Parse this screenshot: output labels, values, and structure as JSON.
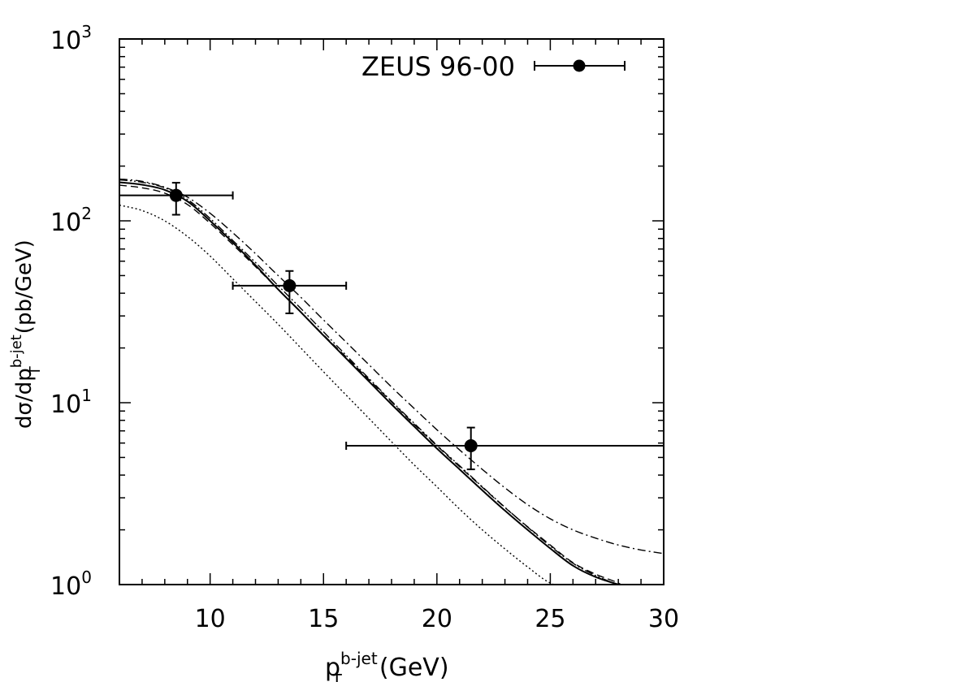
{
  "chart_data": {
    "type": "line",
    "title": "",
    "xlabel": {
      "base": "p",
      "sub": "T",
      "sup": "b-jet",
      "unit": "(GeV)"
    },
    "ylabel": {
      "prefix": "dσ/dp",
      "sub": "T",
      "sup": "b-jet",
      "unit": "(pb/GeV)"
    },
    "xlim": [
      6,
      30
    ],
    "ylim": [
      1,
      1000
    ],
    "yscale": "log",
    "grid": false,
    "legend_position": "top-right",
    "x_ticks": [
      {
        "value": 10,
        "label": "10"
      },
      {
        "value": 15,
        "label": "15"
      },
      {
        "value": 20,
        "label": "20"
      },
      {
        "value": 25,
        "label": "25"
      },
      {
        "value": 30,
        "label": "30"
      }
    ],
    "y_ticks": [
      {
        "value": 1,
        "base": "10",
        "exp": "0"
      },
      {
        "value": 10,
        "base": "10",
        "exp": "1"
      },
      {
        "value": 100,
        "base": "10",
        "exp": "2"
      },
      {
        "value": 1000,
        "base": "10",
        "exp": "3"
      }
    ],
    "data_series": {
      "name": "ZEUS 96-00",
      "points": [
        {
          "x": 8.5,
          "y": 138,
          "xerr": [
            6,
            11
          ],
          "yerr": [
            108,
            162
          ]
        },
        {
          "x": 13.5,
          "y": 44,
          "xerr": [
            11,
            16
          ],
          "yerr": [
            31,
            53
          ]
        },
        {
          "x": 21.5,
          "y": 5.8,
          "xerr": [
            16,
            30
          ],
          "yerr": [
            4.3,
            7.3
          ]
        }
      ]
    },
    "curves": [
      {
        "style": "solid",
        "x": [
          6,
          7,
          8,
          9,
          10,
          11,
          12,
          13,
          14,
          15,
          16,
          17,
          18,
          19,
          20,
          21,
          22,
          23,
          24,
          25,
          26,
          27,
          28,
          28.5
        ],
        "y": [
          163,
          158,
          148,
          128,
          100,
          76,
          57,
          42,
          31.5,
          23.4,
          17.5,
          13.1,
          9.8,
          7.4,
          5.6,
          4.3,
          3.3,
          2.55,
          2,
          1.58,
          1.27,
          1.1,
          1.0,
          0.95
        ]
      },
      {
        "style": "dashed",
        "x": [
          6,
          7,
          8,
          9,
          10,
          11,
          12,
          13,
          14,
          15,
          16,
          17,
          18,
          19,
          20,
          21,
          22,
          23,
          24,
          25,
          26,
          27,
          28,
          28.3
        ],
        "y": [
          157,
          152,
          142,
          123,
          97,
          74,
          56,
          42,
          31.5,
          23.6,
          17.8,
          13.4,
          10.1,
          7.6,
          5.8,
          4.45,
          3.43,
          2.65,
          2.08,
          1.65,
          1.32,
          1.14,
          1.02,
          0.95
        ]
      },
      {
        "style": "dotted",
        "x": [
          6,
          7,
          8,
          9,
          10,
          11,
          12,
          13,
          14,
          15,
          16,
          17,
          18,
          19,
          20,
          21,
          22,
          23,
          24,
          25,
          26,
          26.5
        ],
        "y": [
          122,
          114,
          100,
          82,
          64,
          48,
          36,
          27,
          20,
          14.8,
          11,
          8.2,
          6.1,
          4.55,
          3.45,
          2.6,
          2.0,
          1.57,
          1.25,
          1.02,
          0.95,
          0.9
        ]
      },
      {
        "style": "dashdot",
        "x": [
          6,
          7,
          8,
          9,
          10,
          11,
          12,
          13,
          14,
          15,
          16,
          17,
          18,
          19,
          20,
          21,
          22,
          23,
          24,
          25,
          26,
          27,
          28,
          29,
          30
        ],
        "y": [
          170,
          165,
          153,
          135,
          110,
          86,
          66,
          50,
          38,
          28.5,
          21.5,
          16.2,
          12.2,
          9.3,
          7.1,
          5.5,
          4.3,
          3.4,
          2.75,
          2.3,
          2.0,
          1.8,
          1.65,
          1.55,
          1.48
        ]
      },
      {
        "style": "dashdotdot",
        "x": [
          6,
          7,
          8,
          9,
          10,
          11,
          12,
          13,
          14,
          15,
          16,
          17,
          18,
          19,
          20,
          21,
          22,
          23,
          24,
          25,
          26,
          27,
          28,
          28.6
        ],
        "y": [
          168,
          163,
          152,
          131,
          103,
          78,
          59,
          44,
          33,
          24.5,
          18.2,
          13.6,
          10.2,
          7.7,
          5.85,
          4.5,
          3.45,
          2.66,
          2.07,
          1.63,
          1.31,
          1.12,
          1.0,
          0.95
        ]
      }
    ]
  }
}
